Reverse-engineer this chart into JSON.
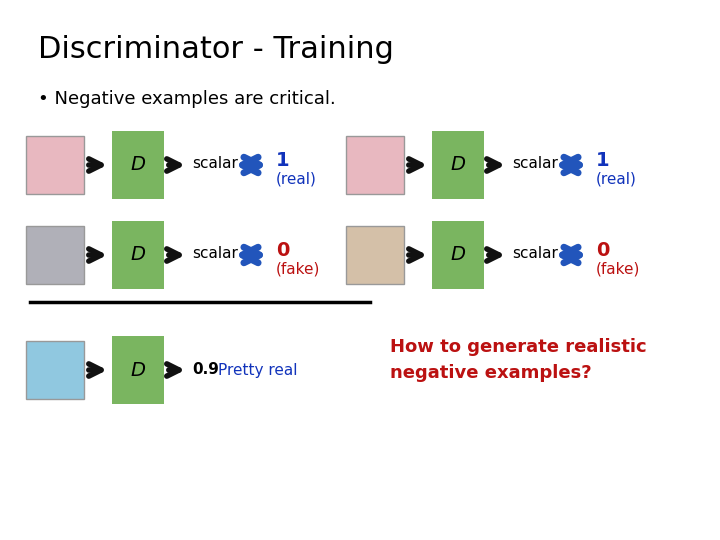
{
  "title": "Discriminator - Training",
  "bullet": "• Negative examples are critical.",
  "bg_color": "#ffffff",
  "title_color": "#000000",
  "title_fontsize": 22,
  "bullet_fontsize": 13,
  "D_box_color": "#7ab560",
  "D_text_color": "#000000",
  "D_fontsize": 14,
  "arrow_color": "#111111",
  "double_arrow_color": "#2255bb",
  "scalar_color": "#000000",
  "scalar_fontsize": 11,
  "real_value_color": "#1133bb",
  "fake_value_color": "#bb1111",
  "label_real_color": "#1133bb",
  "label_fake_color": "#bb1111",
  "pretty_real_color": "#1133bb",
  "how_to_color": "#bb1111",
  "how_to_fontsize": 13,
  "how_to_text": "How to generate realistic\nnegative examples?",
  "value_fontsize": 14,
  "label_fontsize": 11
}
